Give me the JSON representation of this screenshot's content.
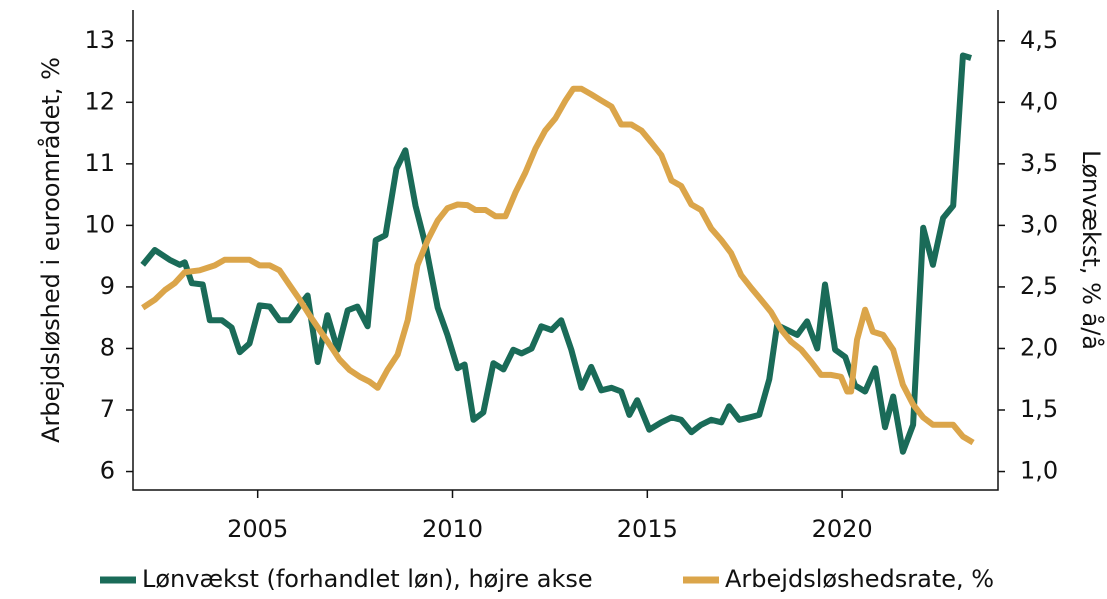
{
  "chart_data": {
    "type": "line",
    "ylabel": "Arbejdsløshed i euroområdet, %",
    "y2label": "Lønvækst, % å/å",
    "xlim": [
      2001.8,
      2024
    ],
    "xticks": [
      2005,
      2010,
      2015,
      2020
    ],
    "ylim": [
      5.7,
      13.5
    ],
    "yticks": [
      6,
      7,
      8,
      9,
      10,
      11,
      12,
      13
    ],
    "y2lim": [
      0.85,
      4.75
    ],
    "y2ticks": [
      {
        "value": 1.0,
        "label": "1,0"
      },
      {
        "value": 1.5,
        "label": "1,5"
      },
      {
        "value": 2.0,
        "label": "2,0"
      },
      {
        "value": 2.5,
        "label": "2,5"
      },
      {
        "value": 3.0,
        "label": "3,0"
      },
      {
        "value": 3.5,
        "label": "3,5"
      },
      {
        "value": 4.0,
        "label": "4,0"
      },
      {
        "value": 4.5,
        "label": "4,5"
      }
    ],
    "legend": "bottom",
    "series": [
      {
        "name": "Lønvækst (forhandlet løn), højre akse",
        "color": "#1a6b58",
        "axis": "y2",
        "x": [
          2002.05,
          2002.36,
          2002.74,
          2003.0,
          2003.13,
          2003.31,
          2003.59,
          2003.77,
          2004.08,
          2004.33,
          2004.54,
          2004.79,
          2005.05,
          2005.31,
          2005.56,
          2005.82,
          2006.08,
          2006.28,
          2006.54,
          2006.79,
          2007.05,
          2007.31,
          2007.56,
          2007.82,
          2008.03,
          2008.28,
          2008.56,
          2008.79,
          2009.05,
          2009.31,
          2009.62,
          2009.87,
          2010.13,
          2010.31,
          2010.54,
          2010.79,
          2011.05,
          2011.31,
          2011.56,
          2011.77,
          2012.03,
          2012.28,
          2012.54,
          2012.79,
          2013.05,
          2013.31,
          2013.56,
          2013.82,
          2014.08,
          2014.33,
          2014.54,
          2014.74,
          2015.05,
          2015.36,
          2015.62,
          2015.87,
          2016.13,
          2016.38,
          2016.64,
          2016.9,
          2017.1,
          2017.36,
          2017.62,
          2017.87,
          2018.13,
          2018.33,
          2018.59,
          2018.85,
          2019.1,
          2019.36,
          2019.56,
          2019.82,
          2020.08,
          2020.33,
          2020.59,
          2020.85,
          2021.1,
          2021.31,
          2021.56,
          2021.82,
          2022.08,
          2022.33,
          2022.59,
          2022.85,
          2023.1,
          2023.31
        ],
        "values": [
          2.68,
          2.8,
          2.72,
          2.68,
          2.7,
          2.53,
          2.52,
          2.23,
          2.23,
          2.17,
          1.97,
          2.04,
          2.35,
          2.34,
          2.23,
          2.23,
          2.35,
          2.43,
          1.89,
          2.27,
          1.99,
          2.31,
          2.34,
          2.18,
          2.88,
          2.92,
          3.46,
          3.61,
          3.16,
          2.84,
          2.33,
          2.11,
          1.84,
          1.87,
          1.42,
          1.48,
          1.88,
          1.83,
          1.99,
          1.96,
          2.0,
          2.18,
          2.15,
          2.23,
          1.99,
          1.68,
          1.85,
          1.66,
          1.68,
          1.65,
          1.46,
          1.58,
          1.34,
          1.4,
          1.44,
          1.42,
          1.32,
          1.38,
          1.42,
          1.4,
          1.53,
          1.42,
          1.44,
          1.46,
          1.75,
          2.19,
          2.15,
          2.11,
          2.22,
          2.0,
          2.52,
          1.99,
          1.93,
          1.7,
          1.65,
          1.84,
          1.36,
          1.61,
          1.16,
          1.38,
          2.98,
          2.68,
          3.06,
          3.16,
          4.38,
          4.36
        ]
      },
      {
        "name": "Arbejdsløshedsrate, %",
        "color": "#dba54a",
        "x": [
          2002.05,
          2002.36,
          2002.62,
          2002.87,
          2003.13,
          2003.51,
          2003.9,
          2004.15,
          2004.54,
          2004.79,
          2005.05,
          2005.31,
          2005.56,
          2005.82,
          2006.08,
          2006.33,
          2006.59,
          2006.85,
          2007.1,
          2007.36,
          2007.62,
          2007.87,
          2008.08,
          2008.33,
          2008.59,
          2008.85,
          2009.1,
          2009.36,
          2009.62,
          2009.87,
          2010.13,
          2010.38,
          2010.59,
          2010.85,
          2011.1,
          2011.36,
          2011.62,
          2011.87,
          2012.13,
          2012.38,
          2012.64,
          2012.9,
          2013.1,
          2013.31,
          2013.56,
          2013.82,
          2014.08,
          2014.33,
          2014.59,
          2014.85,
          2015.1,
          2015.36,
          2015.62,
          2015.87,
          2016.13,
          2016.38,
          2016.64,
          2016.9,
          2017.15,
          2017.41,
          2017.67,
          2017.92,
          2018.18,
          2018.44,
          2018.69,
          2018.95,
          2019.21,
          2019.46,
          2019.72,
          2019.97,
          2020.13,
          2020.23,
          2020.38,
          2020.59,
          2020.79,
          2021.05,
          2021.31,
          2021.56,
          2021.82,
          2022.08,
          2022.33,
          2022.59,
          2022.85,
          2023.1,
          2023.36
        ],
        "values": [
          8.66,
          8.79,
          8.95,
          9.06,
          9.24,
          9.27,
          9.35,
          9.44,
          9.44,
          9.44,
          9.35,
          9.35,
          9.27,
          9.03,
          8.79,
          8.54,
          8.3,
          8.06,
          7.82,
          7.65,
          7.54,
          7.46,
          7.36,
          7.65,
          7.9,
          8.46,
          9.35,
          9.76,
          10.08,
          10.28,
          10.34,
          10.33,
          10.25,
          10.25,
          10.15,
          10.15,
          10.54,
          10.86,
          11.25,
          11.54,
          11.74,
          12.03,
          12.22,
          12.22,
          12.13,
          12.03,
          11.93,
          11.64,
          11.64,
          11.54,
          11.35,
          11.14,
          10.73,
          10.64,
          10.34,
          10.25,
          9.95,
          9.76,
          9.55,
          9.19,
          8.98,
          8.79,
          8.59,
          8.3,
          8.11,
          7.98,
          7.78,
          7.57,
          7.57,
          7.54,
          7.3,
          7.3,
          8.14,
          8.63,
          8.27,
          8.22,
          7.98,
          7.41,
          7.09,
          6.88,
          6.76,
          6.76,
          6.76,
          6.57,
          6.47
        ]
      }
    ]
  }
}
